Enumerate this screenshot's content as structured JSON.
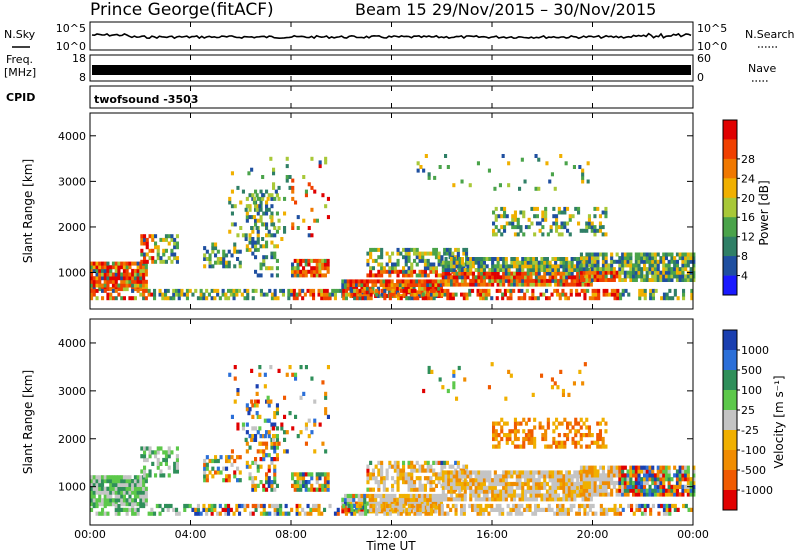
{
  "header": {
    "station": "Prince George",
    "mode": "(fitACF)",
    "beam": "Beam 15",
    "date_range": "29/Nov/2015 – 30/Nov/2015"
  },
  "top_panels": {
    "nsky_label": "N.Sky",
    "nsky_ticks": [
      "10^5",
      "10^0"
    ],
    "nsearch_label": "N.Search",
    "freq_label_line1": "Freq.",
    "freq_label_line2": "[MHz]",
    "freq_ticks": [
      "18",
      "8"
    ],
    "nave_ticks": [
      "60",
      "0"
    ],
    "nave_label": "Nave",
    "cpid_label": "CPID",
    "cpid_value": "twofsound -3503"
  },
  "colors": {
    "power_scale": [
      "#1a1aff",
      "#1f4fa0",
      "#2f7f66",
      "#4aa34a",
      "#a8c838",
      "#f0b000",
      "#f07800",
      "#f04000",
      "#e00000"
    ],
    "velocity_scale": [
      "#1a3fb0",
      "#2b6fd8",
      "#2f8f5a",
      "#5cc84a",
      "#c4c4c4",
      "#f0b000",
      "#f08c00",
      "#f05a00",
      "#e00000"
    ]
  },
  "chart_data": [
    {
      "type": "heatmap",
      "name": "power",
      "ylabel": "Slant Range [km]",
      "ylim": [
        200,
        4500
      ],
      "yticks": [
        1000,
        2000,
        3000,
        4000
      ],
      "xlim": [
        0,
        24
      ],
      "colorbar_label": "Power [dB]",
      "colorbar_ticks": [
        "4",
        "8",
        "12",
        "16",
        "20",
        "24",
        "28"
      ],
      "colorbar_range": [
        0,
        32
      ]
    },
    {
      "type": "heatmap",
      "name": "velocity",
      "ylabel": "Slant Range [km]",
      "ylim": [
        200,
        4500
      ],
      "yticks": [
        1000,
        2000,
        3000,
        4000
      ],
      "xlim": [
        0,
        24
      ],
      "xticks": [
        "00:00",
        "04:00",
        "08:00",
        "12:00",
        "16:00",
        "20:00",
        "00:00"
      ],
      "xlabel": "Time UT",
      "colorbar_label": "Velocity [m s⁻¹]",
      "colorbar_ticks": [
        "1000",
        "500",
        "100",
        "25",
        "-25",
        "-100",
        "-500",
        "-1000"
      ]
    }
  ]
}
